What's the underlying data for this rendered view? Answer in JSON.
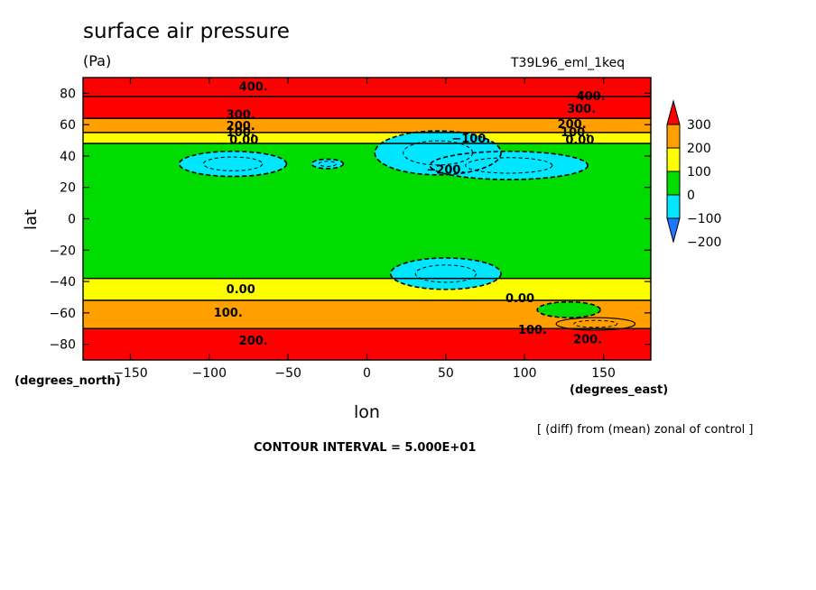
{
  "chart_data": {
    "type": "heatmap",
    "title": "surface air pressure",
    "units": "(Pa)",
    "run_label": "T39L96_eml_1keq",
    "xlabel": "lon",
    "ylabel": "lat",
    "x_unit": "(degrees_east)",
    "y_unit": "(degrees_north)",
    "xlim": [
      -180,
      180
    ],
    "ylim": [
      -90,
      90
    ],
    "x_ticks": [
      -150,
      -100,
      -50,
      0,
      50,
      100,
      150
    ],
    "y_ticks": [
      -80,
      -60,
      -40,
      -20,
      0,
      20,
      40,
      60,
      80
    ],
    "note": "[ (diff) from (mean) zonal of control ]",
    "contour_interval_text": "CONTOUR INTERVAL = 5.000E+01",
    "colorbar": {
      "labels": [
        "300",
        "200",
        "100",
        "0",
        "−100",
        "−200"
      ],
      "levels": [
        -300,
        -200,
        -100,
        0,
        100,
        200,
        300
      ],
      "colors": [
        "#1e78ff",
        "#00e6ff",
        "#00dc00",
        "#ffff00",
        "#ffa000",
        "#ff0000"
      ]
    },
    "zonal_bands": [
      {
        "lat_min": 78,
        "lat_max": 90,
        "value": 400
      },
      {
        "lat_min": 64,
        "lat_max": 78,
        "value": 300
      },
      {
        "lat_min": 55,
        "lat_max": 64,
        "value": 150
      },
      {
        "lat_min": 48,
        "lat_max": 55,
        "value": 50
      },
      {
        "lat_min": -38,
        "lat_max": 48,
        "value": -60
      },
      {
        "lat_min": -52,
        "lat_max": -38,
        "value": 40
      },
      {
        "lat_min": -70,
        "lat_max": -52,
        "value": 150
      },
      {
        "lat_min": -90,
        "lat_max": -70,
        "value": 250
      }
    ],
    "anomalies": [
      {
        "lon_center": 45,
        "lat_center": 42,
        "lon_radius": 40,
        "lat_radius": 14,
        "value": -200
      },
      {
        "lon_center": 90,
        "lat_center": 34,
        "lon_radius": 50,
        "lat_radius": 9,
        "value": -150
      },
      {
        "lon_center": -85,
        "lat_center": 35,
        "lon_radius": 34,
        "lat_radius": 8,
        "value": -150
      },
      {
        "lon_center": -25,
        "lat_center": 35,
        "lon_radius": 10,
        "lat_radius": 3,
        "value": -150
      },
      {
        "lon_center": 50,
        "lat_center": -35,
        "lon_radius": 35,
        "lat_radius": 10,
        "value": -150
      },
      {
        "lon_center": 128,
        "lat_center": -58,
        "lon_radius": 20,
        "lat_radius": 5,
        "value": -50
      },
      {
        "lon_center": 145,
        "lat_center": -67,
        "lon_radius": 25,
        "lat_radius": 4,
        "value": 150
      }
    ],
    "contour_labels": [
      {
        "text": "400.",
        "lon": -72,
        "lat": 84
      },
      {
        "text": "400.",
        "lon": 142,
        "lat": 78
      },
      {
        "text": "300.",
        "lon": -80,
        "lat": 66
      },
      {
        "text": "300.",
        "lon": 136,
        "lat": 70
      },
      {
        "text": "200.",
        "lon": -80,
        "lat": 59
      },
      {
        "text": "200.",
        "lon": 130,
        "lat": 60
      },
      {
        "text": "100.",
        "lon": -80,
        "lat": 55
      },
      {
        "text": "100.",
        "lon": 132,
        "lat": 55
      },
      {
        "text": "0.00",
        "lon": -78,
        "lat": 50
      },
      {
        "text": "0.00",
        "lon": 135,
        "lat": 50
      },
      {
        "text": "−100.",
        "lon": 66,
        "lat": 51
      },
      {
        "text": "−200.",
        "lon": 50,
        "lat": 31
      },
      {
        "text": "0.00",
        "lon": -80,
        "lat": -45
      },
      {
        "text": "0.00",
        "lon": 97,
        "lat": -51
      },
      {
        "text": "100.",
        "lon": -88,
        "lat": -60
      },
      {
        "text": "100.",
        "lon": 105,
        "lat": -71
      },
      {
        "text": "200.",
        "lon": -72,
        "lat": -78
      },
      {
        "text": "200.",
        "lon": 140,
        "lat": -77
      }
    ]
  }
}
